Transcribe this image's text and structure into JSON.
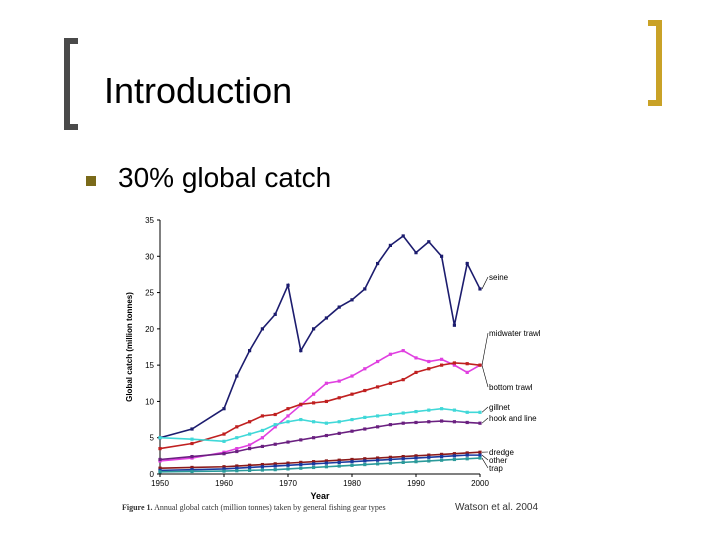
{
  "slide": {
    "title": "Introduction",
    "bullet": "30% global catch",
    "citation": "Watson et al. 2004",
    "caption_label": "Figure 1.",
    "caption_text": "Annual global catch (million tonnes) taken by general fishing gear types"
  },
  "colors": {
    "bracket_left": "#4a4a4a",
    "bracket_right": "#c9a227",
    "bullet": "#7a6a1a"
  },
  "chart_data": {
    "type": "line",
    "xlabel": "Year",
    "ylabel": "Global catch (million tonnes)",
    "xlim": [
      1950,
      2000
    ],
    "ylim": [
      0,
      35
    ],
    "xticks": [
      "1950",
      "1960",
      "1970",
      "1980",
      "1990",
      "2000"
    ],
    "yticks": [
      "0",
      "5",
      "10",
      "15",
      "20",
      "25",
      "30",
      "35"
    ],
    "x": [
      1950,
      1955,
      1960,
      1962,
      1964,
      1966,
      1968,
      1970,
      1972,
      1974,
      1976,
      1978,
      1980,
      1982,
      1984,
      1986,
      1988,
      1990,
      1992,
      1994,
      1996,
      1998,
      2000
    ],
    "series": [
      {
        "name": "seine",
        "color": "#1c1c6e",
        "values": [
          5,
          6.2,
          9,
          13.5,
          17,
          20,
          22,
          26,
          17,
          20,
          21.5,
          23,
          24,
          25.5,
          29,
          31.5,
          32.8,
          30.5,
          32,
          30,
          20.5,
          29,
          25.5
        ]
      },
      {
        "name": "midwater trawl",
        "color": "#e040e0",
        "values": [
          1.8,
          2.2,
          3,
          3.5,
          4,
          5,
          6.5,
          8,
          9.5,
          11,
          12.5,
          12.8,
          13.5,
          14.5,
          15.5,
          16.5,
          17,
          16,
          15.5,
          15.8,
          15,
          14,
          15
        ]
      },
      {
        "name": "bottom trawl",
        "color": "#c02020",
        "values": [
          3.5,
          4.2,
          5.5,
          6.5,
          7.2,
          8,
          8.2,
          9,
          9.6,
          9.8,
          10,
          10.5,
          11,
          11.5,
          12,
          12.5,
          13,
          14,
          14.5,
          15,
          15.3,
          15.2,
          15
        ]
      },
      {
        "name": "gillnet",
        "color": "#40d8d8",
        "values": [
          5,
          4.8,
          4.5,
          5,
          5.5,
          6,
          6.8,
          7.2,
          7.5,
          7.2,
          7,
          7.2,
          7.5,
          7.8,
          8,
          8.2,
          8.4,
          8.6,
          8.8,
          9,
          8.8,
          8.5,
          8.5
        ]
      },
      {
        "name": "hook and line",
        "color": "#6a2080",
        "values": [
          2,
          2.4,
          2.8,
          3.1,
          3.5,
          3.8,
          4.1,
          4.4,
          4.7,
          5,
          5.3,
          5.6,
          5.9,
          6.2,
          6.5,
          6.8,
          7,
          7.1,
          7.2,
          7.3,
          7.2,
          7.1,
          7
        ]
      },
      {
        "name": "dredge",
        "color": "#8b1a1a",
        "values": [
          0.8,
          0.9,
          1,
          1.1,
          1.2,
          1.3,
          1.4,
          1.5,
          1.6,
          1.7,
          1.8,
          1.9,
          2,
          2.1,
          2.2,
          2.3,
          2.4,
          2.5,
          2.6,
          2.7,
          2.8,
          2.9,
          3
        ]
      },
      {
        "name": "other",
        "color": "#1a3aa0",
        "values": [
          0.5,
          0.6,
          0.7,
          0.8,
          0.9,
          1,
          1.1,
          1.2,
          1.3,
          1.4,
          1.5,
          1.6,
          1.7,
          1.8,
          1.9,
          2,
          2.1,
          2.2,
          2.3,
          2.4,
          2.5,
          2.6,
          2.6
        ]
      },
      {
        "name": "trap",
        "color": "#2a9a9a",
        "values": [
          0.3,
          0.35,
          0.4,
          0.45,
          0.5,
          0.55,
          0.6,
          0.7,
          0.8,
          0.9,
          1,
          1.1,
          1.2,
          1.3,
          1.4,
          1.5,
          1.6,
          1.7,
          1.8,
          1.9,
          2,
          2.1,
          2.2
        ]
      }
    ]
  }
}
